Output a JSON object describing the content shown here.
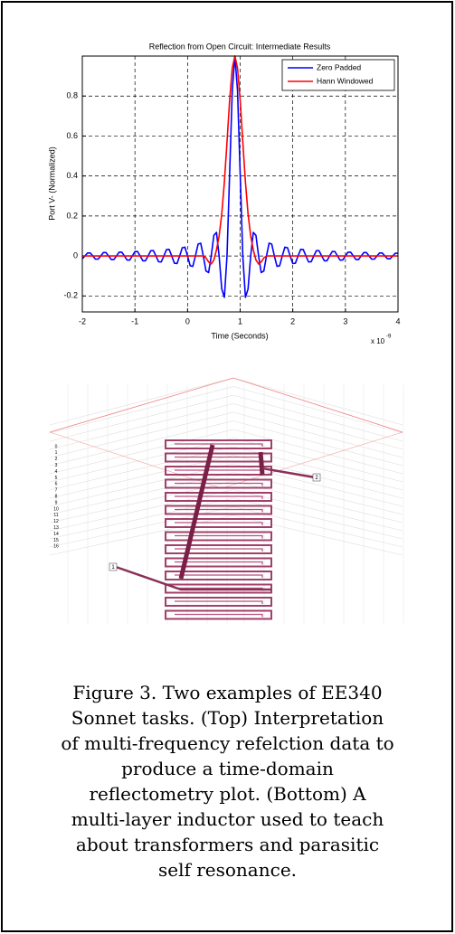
{
  "chart_data": {
    "type": "line",
    "title": "Reflection from Open Circuit: Intermediate Results",
    "x_label": "Time (Seconds)",
    "y_label": "Port V- (Normalized)",
    "x_exponent_base": "x 10",
    "x_exponent": "-9",
    "xlim": [
      -2,
      4
    ],
    "xticks": [
      -2,
      -1,
      0,
      1,
      2,
      3,
      4
    ],
    "ylim": [
      -0.28,
      1
    ],
    "yticks": [
      -0.2,
      0,
      0.2,
      0.4,
      0.6,
      0.8
    ],
    "grid": true,
    "legend": "upper right",
    "x": [
      -2,
      -1.95,
      -1.9,
      -1.85,
      -1.8,
      -1.75,
      -1.7,
      -1.65,
      -1.6,
      -1.55,
      -1.5,
      -1.45,
      -1.4,
      -1.35,
      -1.3,
      -1.25,
      -1.2,
      -1.15,
      -1.1,
      -1.05,
      -1,
      -0.95,
      -0.9,
      -0.85,
      -0.8,
      -0.75,
      -0.7,
      -0.65,
      -0.6,
      -0.55,
      -0.5,
      -0.45,
      -0.4,
      -0.35,
      -0.3,
      -0.25,
      -0.2,
      -0.15,
      -0.1,
      -0.05,
      0,
      0.05,
      0.1,
      0.15,
      0.2,
      0.25,
      0.3,
      0.35,
      0.4,
      0.45,
      0.5,
      0.55,
      0.6,
      0.65,
      0.7,
      0.75,
      0.8,
      0.85,
      0.9,
      0.95,
      1,
      1.05,
      1.1,
      1.15,
      1.2,
      1.25,
      1.3,
      1.35,
      1.4,
      1.45,
      1.5,
      1.55,
      1.6,
      1.65,
      1.7,
      1.75,
      1.8,
      1.85,
      1.9,
      1.95,
      2,
      2.05,
      2.1,
      2.15,
      2.2,
      2.25,
      2.3,
      2.35,
      2.4,
      2.45,
      2.5,
      2.55,
      2.6,
      2.65,
      2.7,
      2.75,
      2.8,
      2.85,
      2.9,
      2.95,
      3,
      3.05,
      3.1,
      3.15,
      3.2,
      3.25,
      3.3,
      3.35,
      3.4,
      3.45,
      3.5,
      3.55,
      3.6,
      3.65,
      3.7,
      3.75,
      3.8,
      3.85,
      3.9,
      3.95,
      4
    ],
    "series": [
      {
        "name": "Zero Padded",
        "color": "#0000ff",
        "values": [
          -0.014,
          0,
          0.015,
          0.015,
          0,
          -0.016,
          -0.016,
          0,
          0.017,
          0.017,
          0,
          -0.018,
          -0.018,
          0,
          0.019,
          0.019,
          0,
          -0.02,
          -0.021,
          0,
          0.022,
          0.022,
          0,
          -0.024,
          -0.024,
          0,
          0.026,
          0.027,
          0,
          -0.029,
          -0.03,
          0,
          0.032,
          0.033,
          0,
          -0.036,
          -0.038,
          0,
          0.041,
          0.044,
          0,
          -0.049,
          -0.052,
          0,
          0.059,
          0.064,
          0,
          -0.075,
          -0.083,
          0,
          0.103,
          0.118,
          0,
          -0.165,
          -0.207,
          0,
          0.414,
          0.827,
          1,
          0.827,
          0.414,
          0,
          -0.207,
          -0.165,
          0,
          0.118,
          0.103,
          0,
          -0.083,
          -0.075,
          0,
          0.064,
          0.059,
          0,
          -0.052,
          -0.049,
          0,
          0.044,
          0.041,
          0,
          -0.038,
          -0.036,
          0,
          0.033,
          0.032,
          0,
          -0.03,
          -0.029,
          0,
          0.027,
          0.026,
          0,
          -0.024,
          -0.024,
          0,
          0.022,
          0.022,
          0,
          -0.021,
          -0.02,
          0,
          0.019,
          0.019,
          0,
          -0.018,
          -0.018,
          0,
          0.017,
          0.017,
          0,
          -0.016,
          -0.016,
          0,
          0.015,
          0.015,
          0,
          -0.014,
          -0.014,
          0,
          0.014,
          0.013
        ]
      },
      {
        "name": "Hann Windowed",
        "color": "#ff0000",
        "values": [
          0,
          0,
          0,
          0,
          0,
          0,
          0,
          0,
          0,
          0,
          0,
          0,
          0,
          0,
          0,
          0,
          0,
          0,
          0,
          0,
          0,
          0,
          0,
          0,
          0,
          0,
          0,
          0,
          0,
          0,
          0,
          0,
          0,
          0,
          0,
          0,
          0,
          0,
          0,
          0,
          0,
          0,
          0,
          0,
          0,
          0,
          0,
          -0.01,
          -0.03,
          -0.04,
          -0.02,
          0.03,
          0.1,
          0.21,
          0.37,
          0.57,
          0.78,
          0.94,
          1,
          0.94,
          0.78,
          0.57,
          0.37,
          0.21,
          0.1,
          0.03,
          -0.02,
          -0.04,
          -0.03,
          -0.01,
          0,
          0,
          0,
          0,
          0,
          0,
          0,
          0,
          0,
          0,
          0,
          0,
          0,
          0,
          0,
          0,
          0,
          0,
          0,
          0,
          0,
          0,
          0,
          0,
          0,
          0,
          0,
          0,
          0,
          0,
          0,
          0,
          0,
          0,
          0,
          0,
          0,
          0,
          0,
          0,
          0,
          0,
          0,
          0,
          0,
          0,
          0,
          0,
          0,
          0,
          0
        ]
      }
    ]
  },
  "inductor_image": {
    "layer_labels": [
      "0",
      "1",
      "2",
      "3",
      "4",
      "5",
      "6",
      "7",
      "8",
      "9",
      "10",
      "11",
      "12",
      "13",
      "14",
      "15",
      "16"
    ],
    "port_labels": [
      "1",
      "2"
    ]
  },
  "caption": {
    "lines": [
      "Figure 3. Two examples of EE340",
      "Sonnet tasks. (Top) Interpretation",
      "of multi-frequency refelction data to",
      "produce a time-domain",
      "reflectometry plot. (Bottom) A",
      "multi-layer inductor used to teach",
      "about transformers and parasitic",
      "self resonance."
    ]
  }
}
